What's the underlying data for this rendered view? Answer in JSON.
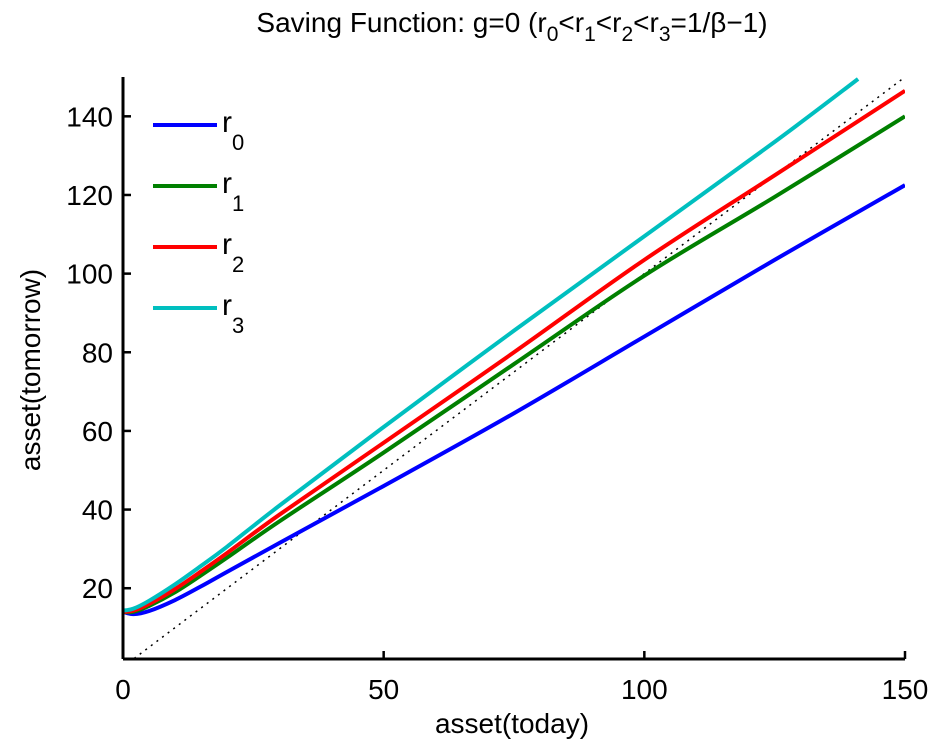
{
  "chart_data": {
    "type": "line",
    "title": "Saving Function: g=0 (r0<r1<r2<r3=1/β−1)",
    "title_parts": [
      {
        "text": "Saving Function: g=0 (r",
        "sub": false
      },
      {
        "text": "0",
        "sub": true
      },
      {
        "text": "<r",
        "sub": false
      },
      {
        "text": "1",
        "sub": true
      },
      {
        "text": "<r",
        "sub": false
      },
      {
        "text": "2",
        "sub": true
      },
      {
        "text": "<r",
        "sub": false
      },
      {
        "text": "3",
        "sub": true
      },
      {
        "text": "=1/β−1)",
        "sub": false
      }
    ],
    "xlabel": "asset(today)",
    "ylabel": "asset(tomorrow)",
    "xlim": [
      0,
      150
    ],
    "ylim": [
      2,
      150
    ],
    "xticks": [
      0,
      50,
      100,
      150
    ],
    "yticks": [
      20,
      40,
      60,
      80,
      100,
      120,
      140
    ],
    "grid": false,
    "legend_position": "top-left",
    "series": [
      {
        "name": "r0",
        "label_base": "r",
        "label_sub": "0",
        "color": "#0000ff",
        "x": [
          0,
          2,
          5,
          10,
          15,
          20,
          30,
          50,
          75,
          100,
          125,
          150
        ],
        "y": [
          14,
          13.4,
          14.2,
          17,
          20.5,
          24.2,
          31.5,
          46,
          64.5,
          84,
          103.5,
          122.5
        ]
      },
      {
        "name": "r1",
        "label_base": "r",
        "label_sub": "1",
        "color": "#008000",
        "x": [
          0,
          2,
          5,
          10,
          15,
          20,
          30,
          50,
          75,
          100,
          125,
          150
        ],
        "y": [
          14,
          14,
          15.5,
          19,
          23.3,
          27.8,
          37,
          54.5,
          77,
          99.5,
          119.5,
          140
        ]
      },
      {
        "name": "r2",
        "label_base": "r",
        "label_sub": "2",
        "color": "#ff0000",
        "x": [
          0,
          2,
          5,
          10,
          15,
          20,
          30,
          50,
          75,
          100,
          125,
          150
        ],
        "y": [
          14,
          14.3,
          16,
          19.8,
          24.3,
          29,
          38.7,
          57,
          80,
          103.5,
          125,
          146.5
        ]
      },
      {
        "name": "r3",
        "label_base": "r",
        "label_sub": "3",
        "color": "#00bfbf",
        "x": [
          0,
          2,
          5,
          10,
          15,
          20,
          30,
          50,
          75,
          100,
          125,
          141
        ],
        "y": [
          14.3,
          14.8,
          16.8,
          21,
          25.7,
          30.6,
          41,
          61,
          85.5,
          109.5,
          133.5,
          149.5
        ]
      }
    ],
    "reference_line": {
      "style": "dotted",
      "color": "#000000",
      "x": [
        0,
        150
      ],
      "y": [
        0,
        150
      ]
    }
  }
}
